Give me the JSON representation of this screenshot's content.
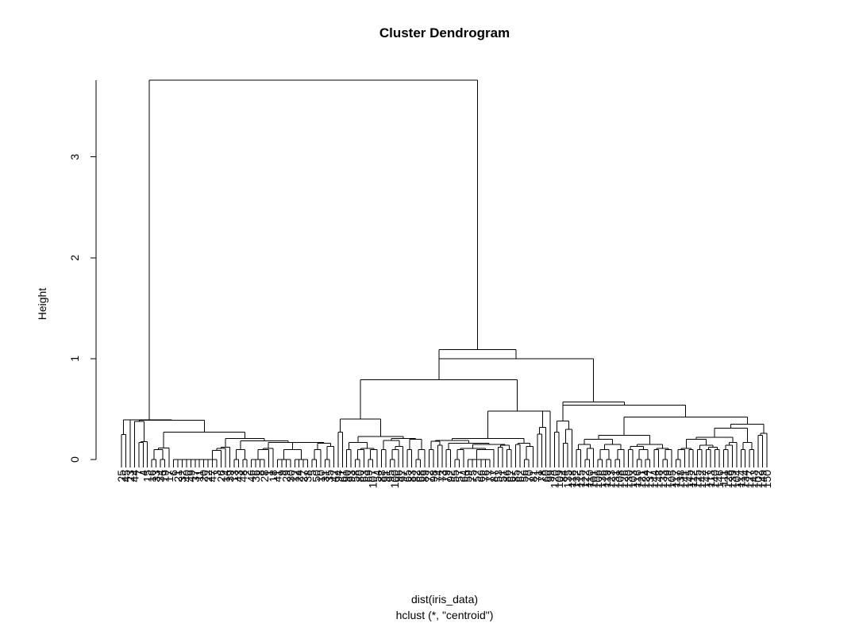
{
  "chart_data": {
    "type": "dendrogram",
    "title": "Cluster Dendrogram",
    "ylabel": "Height",
    "xlabel": "dist(iris_data)",
    "sub": "hclust (*, \"centroid\")",
    "yticks": [
      0,
      1,
      2,
      3
    ],
    "ylim": [
      0,
      3.76
    ],
    "leaves": [
      "25",
      "45",
      "23",
      "44",
      "7",
      "4",
      "15",
      "16",
      "33",
      "34",
      "19",
      "17",
      "6",
      "21",
      "32",
      "40",
      "49",
      "37",
      "11",
      "20",
      "22",
      "47",
      "3",
      "26",
      "14",
      "39",
      "13",
      "43",
      "48",
      "2",
      "46",
      "36",
      "8",
      "28",
      "1",
      "18",
      "41",
      "9",
      "29",
      "30",
      "12",
      "24",
      "27",
      "38",
      "5",
      "50",
      "10",
      "31",
      "35",
      "42",
      "94",
      "61",
      "90",
      "93",
      "58",
      "80",
      "63",
      "69",
      "107",
      "54",
      "88",
      "91",
      "95",
      "100",
      "96",
      "97",
      "65",
      "83",
      "82",
      "68",
      "89",
      "72",
      "98",
      "74",
      "73",
      "79",
      "92",
      "55",
      "57",
      "64",
      "59",
      "75",
      "52",
      "66",
      "76",
      "77",
      "87",
      "53",
      "51",
      "86",
      "67",
      "85",
      "62",
      "56",
      "70",
      "81",
      "71",
      "78",
      "60",
      "99",
      "120",
      "109",
      "84",
      "135",
      "118",
      "132",
      "115",
      "122",
      "110",
      "101",
      "106",
      "136",
      "119",
      "123",
      "131",
      "108",
      "126",
      "130",
      "103",
      "116",
      "121",
      "124",
      "137",
      "144",
      "148",
      "133",
      "129",
      "105",
      "117",
      "138",
      "141",
      "145",
      "112",
      "125",
      "142",
      "147",
      "113",
      "140",
      "146",
      "111",
      "128",
      "139",
      "104",
      "114",
      "134",
      "127",
      "143",
      "102",
      "149",
      "150"
    ],
    "merges": [
      {
        "id": "c01",
        "left": "25",
        "right": "45",
        "height": 0.249
      },
      {
        "id": "c02",
        "left": "c01",
        "right": "23",
        "height": 0.394
      },
      {
        "id": "c03",
        "left": "7",
        "right": "4",
        "height": 0.171
      },
      {
        "id": "c04",
        "left": "c03",
        "right": "15",
        "height": 0.177
      },
      {
        "id": "c05",
        "left": "c04",
        "right": "44",
        "height": 0.376
      },
      {
        "id": "c06",
        "left": "16",
        "right": "33",
        "height": 0.0
      },
      {
        "id": "c07",
        "left": "34",
        "right": "19",
        "height": 0.0
      },
      {
        "id": "c08",
        "left": "c06",
        "right": "c07",
        "height": 0.1
      },
      {
        "id": "c09",
        "left": "c08",
        "right": "17",
        "height": 0.115
      },
      {
        "id": "c10",
        "left": "6",
        "right": "21",
        "height": 0.0
      },
      {
        "id": "c11",
        "left": "c10",
        "right": "32",
        "height": 0.0
      },
      {
        "id": "c12",
        "left": "c11",
        "right": "40",
        "height": 0.0
      },
      {
        "id": "c13",
        "left": "c12",
        "right": "49",
        "height": 0.0
      },
      {
        "id": "c14",
        "left": "c13",
        "right": "37",
        "height": 0.0
      },
      {
        "id": "c15",
        "left": "c14",
        "right": "11",
        "height": 0.0
      },
      {
        "id": "c16",
        "left": "c15",
        "right": "20",
        "height": 0.0
      },
      {
        "id": "c17",
        "left": "c16",
        "right": "22",
        "height": 0.0
      },
      {
        "id": "c18",
        "left": "c17",
        "right": "47",
        "height": 0.0
      },
      {
        "id": "c19",
        "left": "c18",
        "right": "3",
        "height": 0.0
      },
      {
        "id": "c20",
        "left": "c19",
        "right": "26",
        "height": 0.09
      },
      {
        "id": "c21",
        "left": "c20",
        "right": "14",
        "height": 0.109
      },
      {
        "id": "c22",
        "left": "c21",
        "right": "39",
        "height": 0.12
      },
      {
        "id": "c23",
        "left": "13",
        "right": "43",
        "height": 0.0
      },
      {
        "id": "c24",
        "left": "48",
        "right": "2",
        "height": 0.0
      },
      {
        "id": "c25",
        "left": "c23",
        "right": "c24",
        "height": 0.1
      },
      {
        "id": "c26",
        "left": "46",
        "right": "36",
        "height": 0.0
      },
      {
        "id": "c27",
        "left": "8",
        "right": "28",
        "height": 0.0
      },
      {
        "id": "c28",
        "left": "c26",
        "right": "c27",
        "height": 0.0
      },
      {
        "id": "c29",
        "left": "c28",
        "right": "1",
        "height": 0.1
      },
      {
        "id": "c30",
        "left": "c29",
        "right": "18",
        "height": 0.11
      },
      {
        "id": "c31",
        "left": "41",
        "right": "9",
        "height": 0.0
      },
      {
        "id": "c32",
        "left": "29",
        "right": "30",
        "height": 0.0
      },
      {
        "id": "c33",
        "left": "c31",
        "right": "c32",
        "height": 0.0
      },
      {
        "id": "c34",
        "left": "12",
        "right": "24",
        "height": 0.0
      },
      {
        "id": "c35",
        "left": "27",
        "right": "38",
        "height": 0.0
      },
      {
        "id": "c36",
        "left": "c34",
        "right": "c35",
        "height": 0.0
      },
      {
        "id": "c37",
        "left": "c33",
        "right": "c36",
        "height": 0.1
      },
      {
        "id": "c38",
        "left": "5",
        "right": "50",
        "height": 0.0
      },
      {
        "id": "c39",
        "left": "c38",
        "right": "10",
        "height": 0.1
      },
      {
        "id": "c40",
        "left": "31",
        "right": "35",
        "height": 0.0
      },
      {
        "id": "c41",
        "left": "c40",
        "right": "42",
        "height": 0.13
      },
      {
        "id": "c42",
        "left": "c39",
        "right": "c41",
        "height": 0.16
      },
      {
        "id": "c43",
        "left": "c37",
        "right": "c42",
        "height": 0.17
      },
      {
        "id": "c44",
        "left": "c30",
        "right": "c43",
        "height": 0.16
      },
      {
        "id": "c45",
        "left": "c25",
        "right": "c44",
        "height": 0.185
      },
      {
        "id": "c46",
        "left": "c22",
        "right": "c45",
        "height": 0.21
      },
      {
        "id": "c47",
        "left": "c09",
        "right": "c46",
        "height": 0.27
      },
      {
        "id": "c48",
        "left": "c05",
        "right": "c47",
        "height": 0.39
      },
      {
        "id": "c49",
        "left": "c02",
        "right": "c48",
        "height": 0.394
      },
      {
        "id": "d01",
        "left": "94",
        "right": "61",
        "height": 0.27
      },
      {
        "id": "d02",
        "left": "90",
        "right": "93",
        "height": 0.1
      },
      {
        "id": "d03",
        "left": "58",
        "right": "80",
        "height": 0.0
      },
      {
        "id": "d04",
        "left": "d03",
        "right": "63",
        "height": 0.1
      },
      {
        "id": "d05",
        "left": "69",
        "right": "107",
        "height": 0.0
      },
      {
        "id": "d06",
        "left": "d05",
        "right": "54",
        "height": 0.1
      },
      {
        "id": "d07",
        "left": "d04",
        "right": "d06",
        "height": 0.11
      },
      {
        "id": "d08",
        "left": "d02",
        "right": "d07",
        "height": 0.17
      },
      {
        "id": "d09",
        "left": "88",
        "right": "91",
        "height": 0.1
      },
      {
        "id": "d10",
        "left": "95",
        "right": "100",
        "height": 0.0
      },
      {
        "id": "d11",
        "left": "d10",
        "right": "96",
        "height": 0.1
      },
      {
        "id": "d12",
        "left": "d11",
        "right": "97",
        "height": 0.13
      },
      {
        "id": "d13",
        "left": "d09",
        "right": "d12",
        "height": 0.19
      },
      {
        "id": "d14",
        "left": "65",
        "right": "83",
        "height": 0.1
      },
      {
        "id": "d15",
        "left": "82",
        "right": "68",
        "height": 0.0
      },
      {
        "id": "d16",
        "left": "d15",
        "right": "89",
        "height": 0.1
      },
      {
        "id": "d17",
        "left": "d14",
        "right": "d16",
        "height": 0.2
      },
      {
        "id": "d18",
        "left": "d13",
        "right": "d17",
        "height": 0.21
      },
      {
        "id": "d19",
        "left": "d08",
        "right": "d18",
        "height": 0.23
      },
      {
        "id": "d20",
        "left": "d01",
        "right": "d19",
        "height": 0.4
      },
      {
        "id": "d21",
        "left": "72",
        "right": "98",
        "height": 0.1
      },
      {
        "id": "d22",
        "left": "74",
        "right": "73",
        "height": 0.14
      },
      {
        "id": "d23",
        "left": "d21",
        "right": "d22",
        "height": 0.18
      },
      {
        "id": "d24",
        "left": "79",
        "right": "92",
        "height": 0.1
      },
      {
        "id": "d25",
        "left": "55",
        "right": "57",
        "height": 0.0
      },
      {
        "id": "d26",
        "left": "d25",
        "right": "64",
        "height": 0.1
      },
      {
        "id": "d27",
        "left": "59",
        "right": "75",
        "height": 0.0
      },
      {
        "id": "d28",
        "left": "52",
        "right": "66",
        "height": 0.0
      },
      {
        "id": "d29",
        "left": "76",
        "right": "77",
        "height": 0.0
      },
      {
        "id": "d30",
        "left": "d28",
        "right": "d29",
        "height": 0.0
      },
      {
        "id": "d31",
        "left": "d27",
        "right": "d30",
        "height": 0.0
      },
      {
        "id": "d32",
        "left": "d31",
        "right": "87",
        "height": 0.1
      },
      {
        "id": "d33",
        "left": "d26",
        "right": "d32",
        "height": 0.11
      },
      {
        "id": "d34",
        "left": "53",
        "right": "51",
        "height": 0.12
      },
      {
        "id": "d35",
        "left": "86",
        "right": "67",
        "height": 0.1
      },
      {
        "id": "d36",
        "left": "d34",
        "right": "d35",
        "height": 0.14
      },
      {
        "id": "d37",
        "left": "d33",
        "right": "d36",
        "height": 0.15
      },
      {
        "id": "d38",
        "left": "d24",
        "right": "d37",
        "height": 0.16
      },
      {
        "id": "d39",
        "left": "d23",
        "right": "d38",
        "height": 0.19
      },
      {
        "id": "d40",
        "left": "85",
        "right": "62",
        "height": 0.15
      },
      {
        "id": "d41",
        "left": "56",
        "right": "70",
        "height": 0.0
      },
      {
        "id": "d42",
        "left": "d41",
        "right": "81",
        "height": 0.13
      },
      {
        "id": "d43",
        "left": "d40",
        "right": "d42",
        "height": 0.16
      },
      {
        "id": "d44",
        "left": "d39",
        "right": "d43",
        "height": 0.21
      },
      {
        "id": "d45",
        "left": "71",
        "right": "78",
        "height": 0.25
      },
      {
        "id": "d46",
        "left": "d45",
        "right": "60",
        "height": 0.32
      },
      {
        "id": "d47",
        "left": "d46",
        "right": "99",
        "height": 0.48
      },
      {
        "id": "d48",
        "left": "d44",
        "right": "d47",
        "height": 0.27
      },
      {
        "id": "d49",
        "left": "d20",
        "right": "d48",
        "height": 0.79
      },
      {
        "id": "e01",
        "left": "120",
        "right": "109",
        "height": 0.27
      },
      {
        "id": "e02",
        "left": "84",
        "right": "135",
        "height": 0.16
      },
      {
        "id": "e03",
        "left": "e02",
        "right": "118",
        "height": 0.3
      },
      {
        "id": "e04",
        "left": "e01",
        "right": "e03",
        "height": 0.38
      },
      {
        "id": "e05",
        "left": "132",
        "right": "115",
        "height": 0.1
      },
      {
        "id": "e06",
        "left": "122",
        "right": "110",
        "height": 0.0
      },
      {
        "id": "e07",
        "left": "e06",
        "right": "101",
        "height": 0.11
      },
      {
        "id": "e08",
        "left": "e05",
        "right": "e07",
        "height": 0.15
      },
      {
        "id": "e09",
        "left": "106",
        "right": "136",
        "height": 0.0
      },
      {
        "id": "e10",
        "left": "119",
        "right": "123",
        "height": 0.0
      },
      {
        "id": "e11",
        "left": "e09",
        "right": "e10",
        "height": 0.1
      },
      {
        "id": "e12",
        "left": "131",
        "right": "108",
        "height": 0.0
      },
      {
        "id": "e13",
        "left": "e12",
        "right": "126",
        "height": 0.1
      },
      {
        "id": "e14",
        "left": "e11",
        "right": "e13",
        "height": 0.15
      },
      {
        "id": "e15",
        "left": "e08",
        "right": "e14",
        "height": 0.2
      },
      {
        "id": "e16",
        "left": "130",
        "right": "103",
        "height": 0.1
      },
      {
        "id": "e17",
        "left": "116",
        "right": "121",
        "height": 0.0
      },
      {
        "id": "e18",
        "left": "124",
        "right": "137",
        "height": 0.0
      },
      {
        "id": "e19",
        "left": "e17",
        "right": "e18",
        "height": 0.1
      },
      {
        "id": "e20",
        "left": "e16",
        "right": "e19",
        "height": 0.13
      },
      {
        "id": "e21",
        "left": "144",
        "right": "148",
        "height": 0.1
      },
      {
        "id": "e22",
        "left": "133",
        "right": "129",
        "height": 0.0
      },
      {
        "id": "e23",
        "left": "e22",
        "right": "105",
        "height": 0.1
      },
      {
        "id": "e24",
        "left": "e21",
        "right": "e23",
        "height": 0.11
      },
      {
        "id": "e25",
        "left": "e20",
        "right": "e24",
        "height": 0.15
      },
      {
        "id": "e26",
        "left": "e15",
        "right": "e25",
        "height": 0.24
      },
      {
        "id": "e27",
        "left": "117",
        "right": "138",
        "height": 0.0
      },
      {
        "id": "e28",
        "left": "e27",
        "right": "141",
        "height": 0.1
      },
      {
        "id": "e29",
        "left": "145",
        "right": "112",
        "height": 0.1
      },
      {
        "id": "e30",
        "left": "e28",
        "right": "e29",
        "height": 0.11
      },
      {
        "id": "e31",
        "left": "125",
        "right": "142",
        "height": 0.1
      },
      {
        "id": "e32",
        "left": "147",
        "right": "113",
        "height": 0.1
      },
      {
        "id": "e33",
        "left": "140",
        "right": "146",
        "height": 0.1
      },
      {
        "id": "e34",
        "left": "e32",
        "right": "e33",
        "height": 0.12
      },
      {
        "id": "e35",
        "left": "e31",
        "right": "e34",
        "height": 0.14
      },
      {
        "id": "e36",
        "left": "e30",
        "right": "e35",
        "height": 0.2
      },
      {
        "id": "e37",
        "left": "111",
        "right": "128",
        "height": 0.1
      },
      {
        "id": "e38",
        "left": "e37",
        "right": "139",
        "height": 0.14
      },
      {
        "id": "e39",
        "left": "e38",
        "right": "104",
        "height": 0.17
      },
      {
        "id": "e40",
        "left": "e36",
        "right": "e39",
        "height": 0.22
      },
      {
        "id": "e41",
        "left": "114",
        "right": "134",
        "height": 0.1
      },
      {
        "id": "e42",
        "left": "127",
        "right": "143",
        "height": 0.1
      },
      {
        "id": "e43",
        "left": "e41",
        "right": "e42",
        "height": 0.17
      },
      {
        "id": "e44",
        "left": "e40",
        "right": "e43",
        "height": 0.31
      },
      {
        "id": "e45",
        "left": "102",
        "right": "149",
        "height": 0.24
      },
      {
        "id": "e46",
        "left": "e45",
        "right": "150",
        "height": 0.26
      },
      {
        "id": "e47",
        "left": "e44",
        "right": "e46",
        "height": 0.35
      },
      {
        "id": "e48",
        "left": "e26",
        "right": "e47",
        "height": 0.42
      },
      {
        "id": "e49",
        "left": "e48",
        "right": "e04",
        "height": 0.54
      },
      {
        "id": "e50",
        "left": "e49",
        "right": "e04",
        "height": 0.0
      },
      {
        "id": "f01",
        "left": "e49",
        "right": "e04",
        "height": 0.57
      },
      {
        "id": "f02",
        "left": "d49",
        "right": "f01",
        "height": 1.0
      },
      {
        "id": "f03",
        "left": "d49",
        "right": "f02",
        "height": 1.09
      },
      {
        "id": "root",
        "left": "c49",
        "right": "f03",
        "height": 3.76
      }
    ]
  }
}
